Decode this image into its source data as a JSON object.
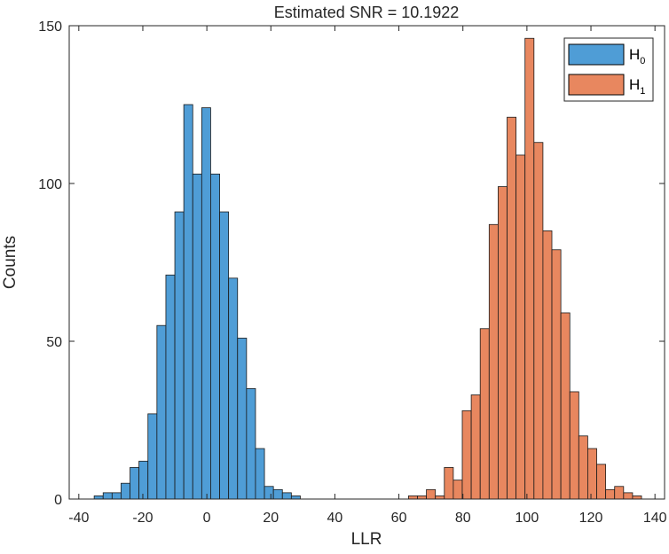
{
  "chart_data": {
    "type": "bar",
    "title": "Estimated SNR = 10.1922",
    "xlabel": "LLR",
    "ylabel": "Counts",
    "xlim": [
      -43,
      143
    ],
    "ylim": [
      0,
      150
    ],
    "xticks": [
      -40,
      -20,
      0,
      20,
      40,
      60,
      80,
      100,
      120,
      140
    ],
    "yticks": [
      0,
      50,
      100,
      150
    ],
    "bin_width": 2.8,
    "legend_position": "top-right",
    "grid": false,
    "series": [
      {
        "name": "H",
        "subscript": "0",
        "color": "#4f9dd6",
        "bins": [
          {
            "x0": -35.2,
            "count": 1
          },
          {
            "x0": -32.4,
            "count": 2
          },
          {
            "x0": -29.6,
            "count": 2
          },
          {
            "x0": -26.8,
            "count": 5
          },
          {
            "x0": -24.0,
            "count": 10
          },
          {
            "x0": -21.2,
            "count": 12
          },
          {
            "x0": -18.4,
            "count": 27
          },
          {
            "x0": -15.6,
            "count": 55
          },
          {
            "x0": -12.8,
            "count": 71
          },
          {
            "x0": -10.0,
            "count": 91
          },
          {
            "x0": -7.2,
            "count": 125
          },
          {
            "x0": -4.4,
            "count": 103
          },
          {
            "x0": -1.6,
            "count": 124
          },
          {
            "x0": 1.2,
            "count": 103
          },
          {
            "x0": 4.0,
            "count": 91
          },
          {
            "x0": 6.8,
            "count": 70
          },
          {
            "x0": 9.6,
            "count": 51
          },
          {
            "x0": 12.4,
            "count": 35
          },
          {
            "x0": 15.2,
            "count": 16
          },
          {
            "x0": 18.0,
            "count": 4
          },
          {
            "x0": 20.8,
            "count": 3
          },
          {
            "x0": 23.6,
            "count": 2
          },
          {
            "x0": 26.4,
            "count": 1
          }
        ]
      },
      {
        "name": "H",
        "subscript": "1",
        "color": "#e8875f",
        "bins": [
          {
            "x0": 63.0,
            "count": 1
          },
          {
            "x0": 65.8,
            "count": 1
          },
          {
            "x0": 68.6,
            "count": 3
          },
          {
            "x0": 71.4,
            "count": 1
          },
          {
            "x0": 74.2,
            "count": 10
          },
          {
            "x0": 77.0,
            "count": 6
          },
          {
            "x0": 79.8,
            "count": 28
          },
          {
            "x0": 82.6,
            "count": 33
          },
          {
            "x0": 85.4,
            "count": 54
          },
          {
            "x0": 88.2,
            "count": 87
          },
          {
            "x0": 91.0,
            "count": 99
          },
          {
            "x0": 93.8,
            "count": 121
          },
          {
            "x0": 96.6,
            "count": 109
          },
          {
            "x0": 99.4,
            "count": 146
          },
          {
            "x0": 102.2,
            "count": 113
          },
          {
            "x0": 105.0,
            "count": 85
          },
          {
            "x0": 107.8,
            "count": 79
          },
          {
            "x0": 110.6,
            "count": 59
          },
          {
            "x0": 113.4,
            "count": 34
          },
          {
            "x0": 116.2,
            "count": 20
          },
          {
            "x0": 119.0,
            "count": 16
          },
          {
            "x0": 121.8,
            "count": 11
          },
          {
            "x0": 124.6,
            "count": 3
          },
          {
            "x0": 127.4,
            "count": 4
          },
          {
            "x0": 130.2,
            "count": 2
          },
          {
            "x0": 133.0,
            "count": 1
          }
        ]
      }
    ]
  }
}
